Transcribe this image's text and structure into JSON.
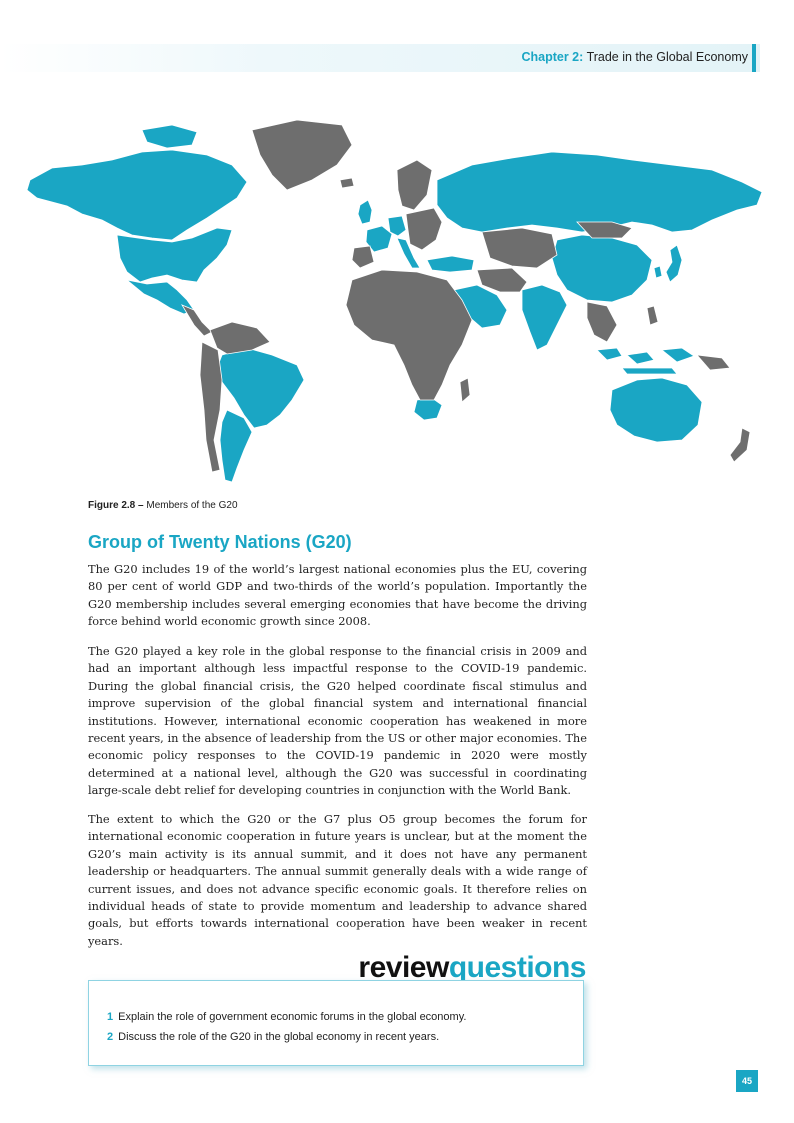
{
  "header": {
    "chapter_label": "Chapter 2:",
    "chapter_title": "Trade in the Global Economy"
  },
  "map": {
    "member_color": "#1aa6c4",
    "nonmember_color": "#6e6e6e"
  },
  "figure": {
    "label": "Figure 2.8 –",
    "caption": "Members of the G20"
  },
  "section": {
    "heading": "Group of Twenty Nations (G20)",
    "paragraphs": [
      "The G20 includes 19 of the world’s largest national economies plus the EU, covering 80 per cent of world GDP and two-thirds of the world’s population. Importantly the G20 membership includes several emerging economies that have become the driving force behind world economic growth since 2008.",
      "The G20 played a key role in the global response to the financial crisis in 2009 and had an important although less impactful response to the COVID-19 pandemic. During the global financial crisis, the G20 helped coordinate fiscal stimulus and improve supervision of the global financial system and international financial institutions. However, international economic cooperation has weakened in more recent years, in the absence of leadership from the US or other major economies. The economic policy responses to the COVID-19 pandemic in 2020 were mostly determined at a national level, although the G20 was successful in coordinating large-scale debt relief for developing countries in conjunction with the World Bank.",
      "The extent to which the G20 or the G7 plus O5 group becomes the forum for international economic cooperation in future years is unclear, but at the moment the G20’s main activity is its annual summit, and it does not have any permanent leadership or headquarters. The annual summit generally deals with a wide range of current issues, and does not advance specific economic goals. It therefore relies on individual heads of state to provide momentum and leadership to advance shared goals, but efforts towards international cooperation have been weaker in recent years."
    ]
  },
  "review": {
    "title_part1": "review",
    "title_part2": "questions",
    "questions": [
      {
        "num": "1",
        "text": "Explain the role of government economic forums in the global economy."
      },
      {
        "num": "2",
        "text": "Discuss the role of the G20 in the global economy in recent years."
      }
    ]
  },
  "page_number": "45"
}
